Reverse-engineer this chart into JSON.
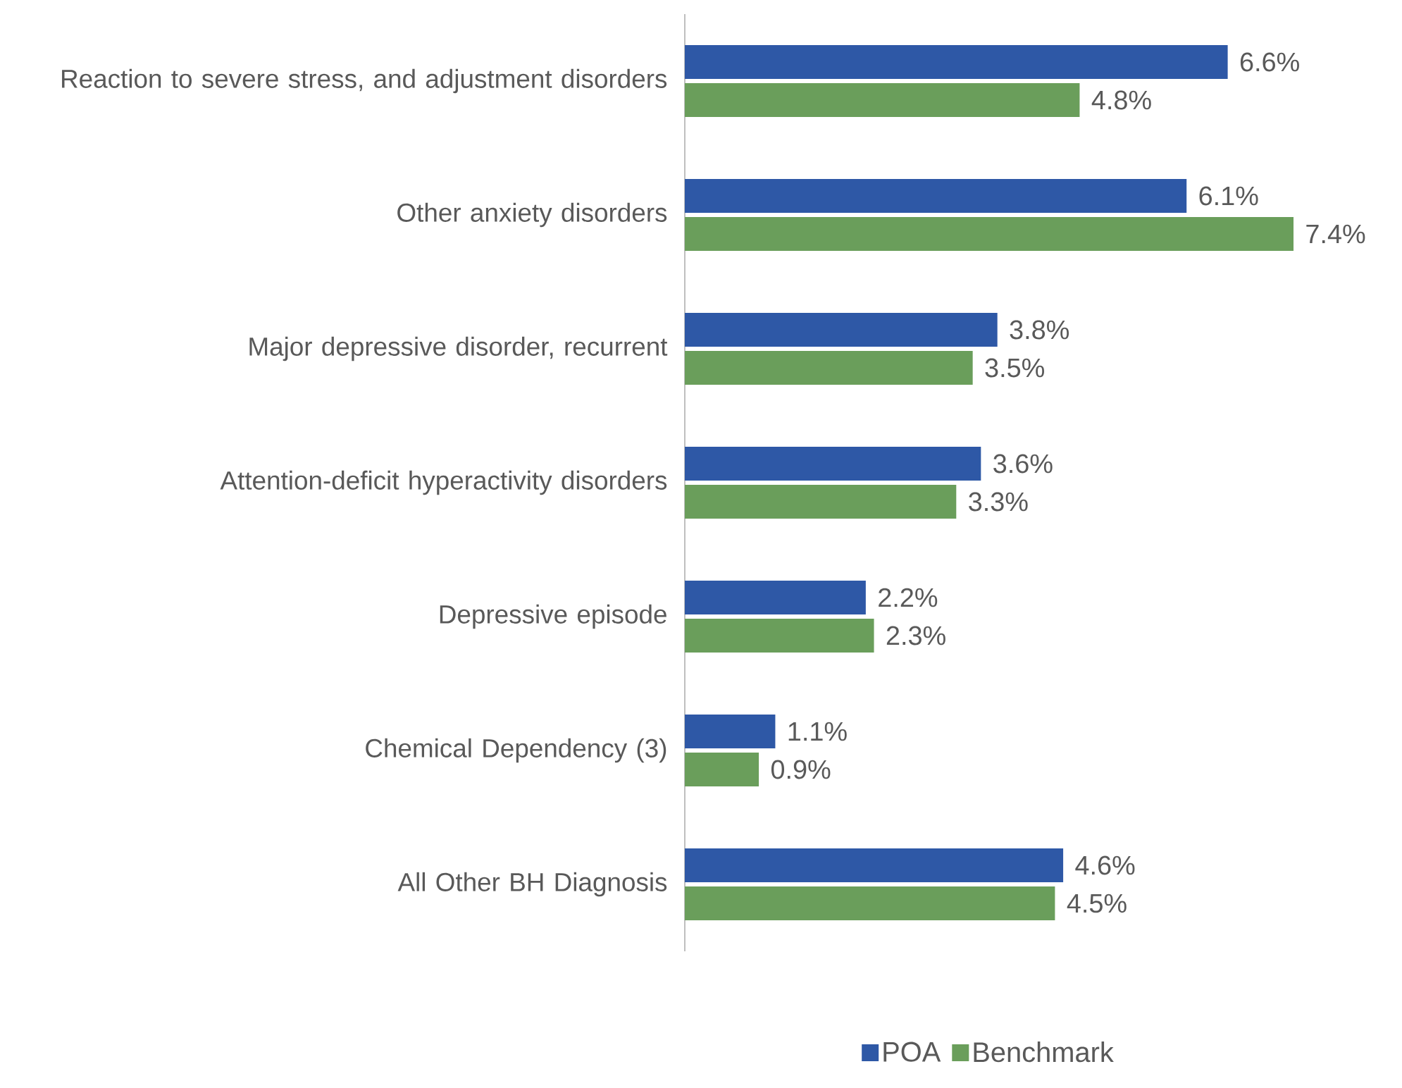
{
  "chart_data": {
    "type": "bar",
    "orientation": "horizontal",
    "categories": [
      "Reaction to severe stress, and adjustment disorders",
      "Other anxiety disorders",
      "Major depressive disorder, recurrent",
      "Attention-deficit hyperactivity disorders",
      "Depressive episode",
      "Chemical Dependency (3)",
      "All Other BH Diagnosis"
    ],
    "series": [
      {
        "name": "POA",
        "color": "#2e58a6",
        "values": [
          6.6,
          6.1,
          3.8,
          3.6,
          2.2,
          1.1,
          4.6
        ],
        "value_labels": [
          "6.6%",
          "6.1%",
          "3.8%",
          "3.6%",
          "2.2%",
          "1.1%",
          "4.6%"
        ]
      },
      {
        "name": "Benchmark",
        "color": "#6a9e5b",
        "values": [
          4.8,
          7.4,
          3.5,
          3.3,
          2.3,
          0.9,
          4.5
        ],
        "value_labels": [
          "4.8%",
          "7.4%",
          "3.5%",
          "3.3%",
          "2.3%",
          "0.9%",
          "4.5%"
        ]
      }
    ],
    "xlim": [
      0,
      7.4
    ],
    "legend": "bottom"
  }
}
